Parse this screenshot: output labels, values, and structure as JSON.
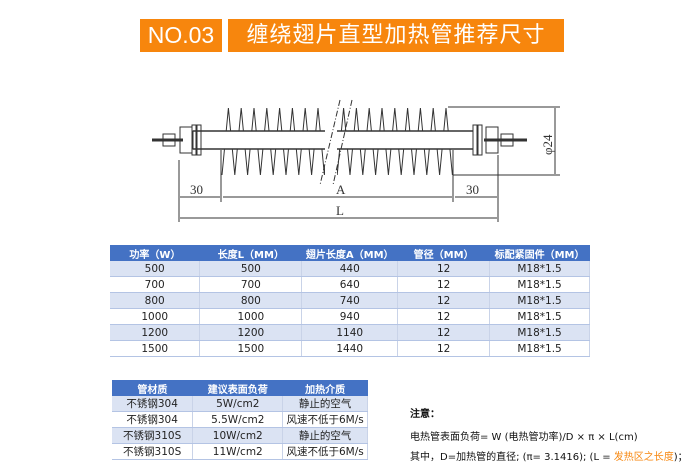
{
  "header": {
    "number": "NO.03",
    "title": "缠绕翅片直型加热管推荐尺寸"
  },
  "diagram": {
    "dim_left": "30",
    "dim_a": "A",
    "dim_right": "30",
    "dim_l": "L",
    "dim_diameter": "φ24"
  },
  "spec_table": {
    "headers": [
      "功率（W）",
      "长度L（MM）",
      "翅片长度A（MM）",
      "管径（MM）",
      "标配紧固件（MM）"
    ],
    "rows": [
      [
        "500",
        "500",
        "440",
        "12",
        "M18*1.5"
      ],
      [
        "700",
        "700",
        "640",
        "12",
        "M18*1.5"
      ],
      [
        "800",
        "800",
        "740",
        "12",
        "M18*1.5"
      ],
      [
        "1000",
        "1000",
        "940",
        "12",
        "M18*1.5"
      ],
      [
        "1200",
        "1200",
        "1140",
        "12",
        "M18*1.5"
      ],
      [
        "1500",
        "1500",
        "1440",
        "12",
        "M18*1.5"
      ]
    ]
  },
  "material_table": {
    "headers": [
      "管材质",
      "建议表面负荷",
      "加热介质"
    ],
    "rows": [
      [
        "不锈钢304",
        "5W/cm2",
        "静止的空气"
      ],
      [
        "不锈钢304",
        "5.5W/cm2",
        "风速不低于6M/s"
      ],
      [
        "不锈钢310S",
        "10W/cm2",
        "静止的空气"
      ],
      [
        "不锈钢310S",
        "11W/cm2",
        "风速不低于6M/s"
      ]
    ]
  },
  "notes": {
    "title": "注意：",
    "formula": "电热管表面负荷= W (电热管功率)/D × π × L(cm)",
    "where_prefix": "其中，D=加热管的直径; (π= 3.1416); (L = ",
    "where_highlight": "发热区之长度",
    "where_suffix": ")；",
    "highlight_color": "#f7860d"
  }
}
